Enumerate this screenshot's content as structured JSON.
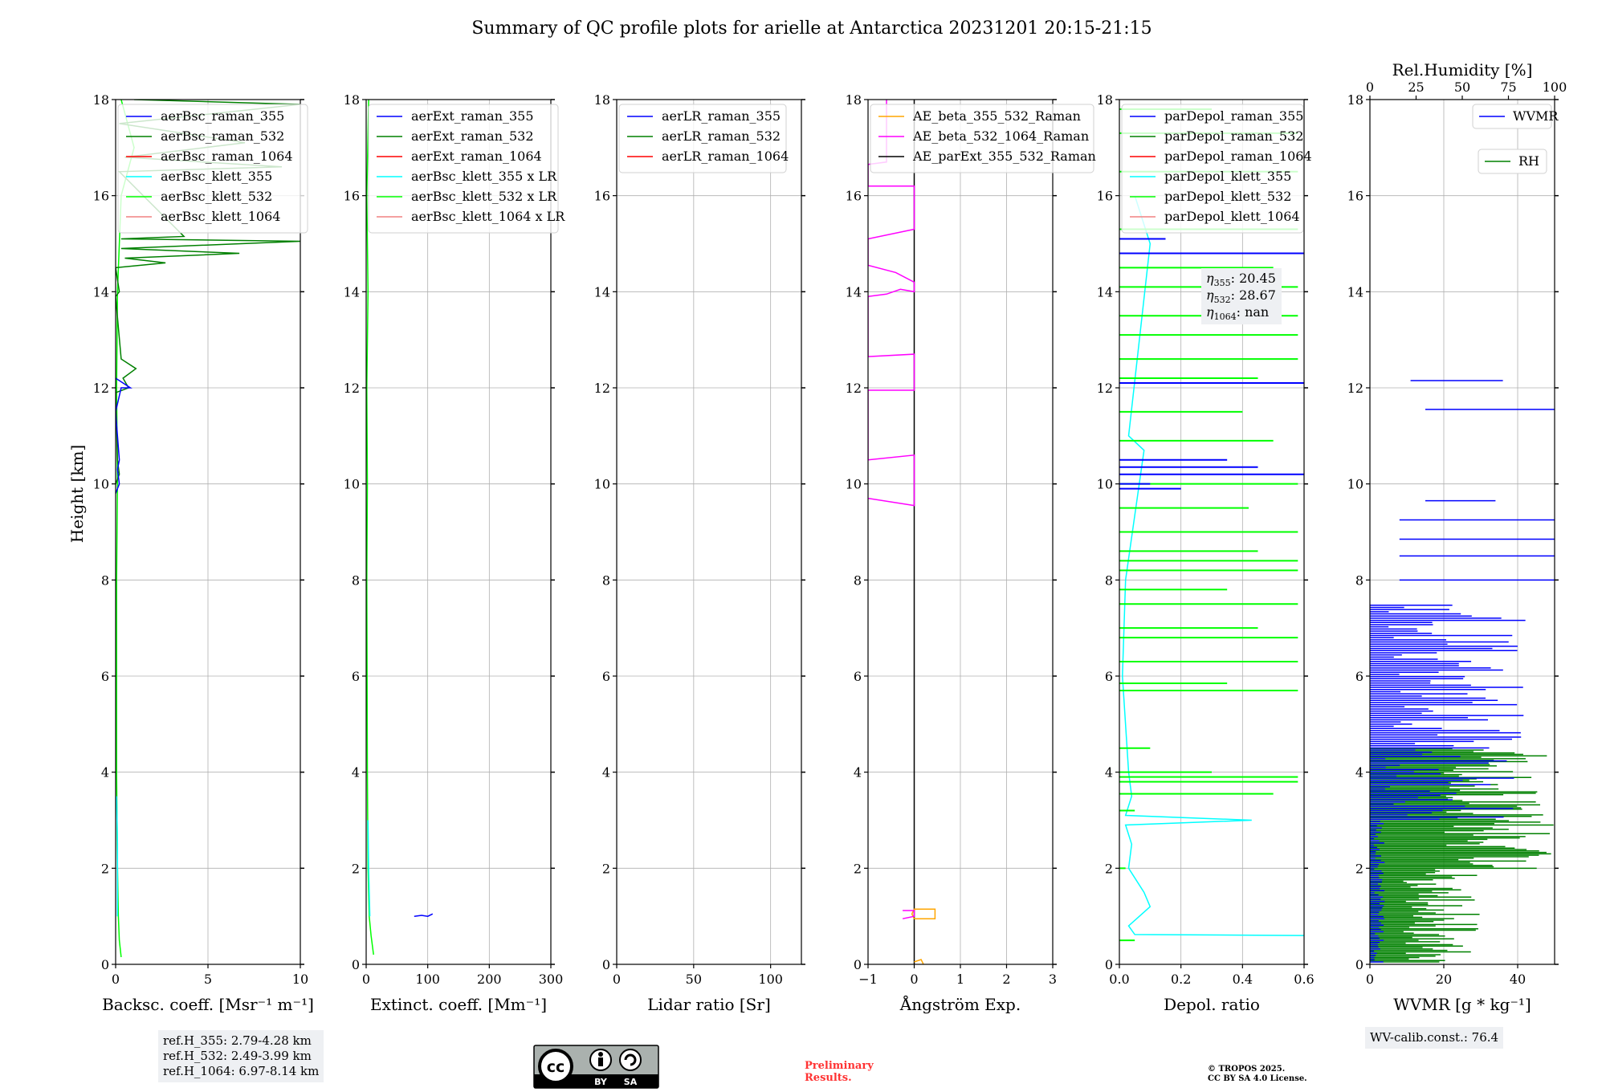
{
  "title": "Summary of QC profile plots for arielle at Antarctica 20231201 20:15-21:15",
  "ylabel": "Height [km]",
  "colors": {
    "blue": "#0000ff",
    "green": "#008000",
    "red": "#ff0000",
    "cyan": "#00ffff",
    "lime": "#00ff00",
    "salmon": "#f08080",
    "orange": "#ffa500",
    "magenta": "#ff00ff",
    "black": "#000000"
  },
  "chart_data": [
    {
      "type": "line",
      "xlabel": "Backsc. coeff. [Msr⁻¹ m⁻¹]",
      "xlim": [
        0,
        10
      ],
      "xticks": [
        0,
        5,
        10
      ],
      "ylim": [
        0,
        18
      ],
      "yticks": [
        0,
        2,
        4,
        6,
        8,
        10,
        12,
        14,
        16,
        18
      ],
      "legend": [
        "aerBsc_raman_355",
        "aerBsc_raman_532",
        "aerBsc_raman_1064",
        "aerBsc_klett_355",
        "aerBsc_klett_532",
        "aerBsc_klett_1064"
      ],
      "legend_colors": [
        "blue",
        "green",
        "red",
        "cyan",
        "lime",
        "salmon"
      ],
      "series": [
        {
          "name": "aerBsc_klett_532",
          "color": "lime",
          "points": [
            [
              0.3,
              0.15
            ],
            [
              0.2,
              0.5
            ],
            [
              0.15,
              1.0
            ],
            [
              0.1,
              2.0
            ],
            [
              0.05,
              4.0
            ],
            [
              0.05,
              8.0
            ],
            [
              0.1,
              10.0
            ],
            [
              0.05,
              12.0
            ],
            [
              0.1,
              14.0
            ],
            [
              0.3,
              16.0
            ],
            [
              1.0,
              17.0
            ],
            [
              0.3,
              18.0
            ]
          ]
        },
        {
          "name": "aerBsc_klett_355",
          "color": "cyan",
          "points": [
            [
              0.1,
              1.0
            ],
            [
              0.1,
              2.5
            ],
            [
              0.05,
              3.5
            ]
          ]
        },
        {
          "name": "aerBsc_raman_532",
          "color": "green",
          "points": [
            [
              0,
              10.0
            ],
            [
              0.2,
              10.2
            ],
            [
              0.1,
              10.5
            ],
            [
              0,
              11.9
            ],
            [
              0.7,
              12.0
            ],
            [
              0.4,
              12.2
            ],
            [
              1.1,
              12.4
            ],
            [
              0.3,
              12.6
            ],
            [
              0,
              13.9
            ],
            [
              0.2,
              14.0
            ],
            [
              0,
              14.5
            ],
            [
              2.7,
              14.6
            ],
            [
              0.5,
              14.7
            ],
            [
              6.7,
              14.8
            ],
            [
              0.3,
              14.9
            ],
            [
              10.0,
              15.05
            ],
            [
              0.3,
              15.1
            ],
            [
              3.7,
              15.15
            ],
            [
              0.2,
              16.5
            ],
            [
              9.0,
              16.6
            ],
            [
              0.5,
              16.8
            ],
            [
              7.0,
              17.1
            ],
            [
              0.2,
              17.5
            ],
            [
              10.0,
              17.9
            ],
            [
              1.0,
              18.0
            ]
          ]
        },
        {
          "name": "aerBsc_raman_355",
          "color": "blue",
          "points": [
            [
              0,
              9.8
            ],
            [
              0.2,
              10.0
            ],
            [
              0.1,
              10.3
            ],
            [
              0.2,
              10.5
            ],
            [
              0,
              11.5
            ],
            [
              0.3,
              12.0
            ],
            [
              0.8,
              12.0
            ],
            [
              0,
              12.2
            ]
          ]
        }
      ]
    },
    {
      "type": "line",
      "xlabel": "Extinct. coeff. [Mm⁻¹]",
      "xlim": [
        0,
        300
      ],
      "xticks": [
        0,
        100,
        200,
        300
      ],
      "ylim": [
        0,
        18
      ],
      "yticks": [
        0,
        2,
        4,
        6,
        8,
        10,
        12,
        14,
        16,
        18
      ],
      "legend": [
        "aerExt_raman_355",
        "aerExt_raman_532",
        "aerExt_raman_1064",
        "aerBsc_klett_355 x LR",
        "aerBsc_klett_532 x LR",
        "aerBsc_klett_1064 x LR"
      ],
      "legend_colors": [
        "blue",
        "green",
        "red",
        "cyan",
        "lime",
        "salmon"
      ],
      "series": [
        {
          "name": "aerBsc_klett_532 x LR",
          "color": "lime",
          "points": [
            [
              12,
              0.2
            ],
            [
              8,
              0.6
            ],
            [
              5,
              1.0
            ],
            [
              3,
              2.0
            ],
            [
              2,
              4.0
            ],
            [
              1,
              8.0
            ],
            [
              2,
              10.0
            ],
            [
              1,
              12.0
            ],
            [
              3,
              14.0
            ],
            [
              1,
              16.0
            ],
            [
              4,
              18.0
            ]
          ]
        },
        {
          "name": "aerBsc_klett_355 x LR",
          "color": "cyan",
          "points": [
            [
              6,
              1.0
            ],
            [
              4,
              2.0
            ],
            [
              3,
              3.0
            ]
          ]
        },
        {
          "name": "aerExt_raman_355",
          "color": "blue",
          "points": [
            [
              78,
              1.0
            ],
            [
              90,
              1.02
            ],
            [
              100,
              1.0
            ],
            [
              108,
              1.05
            ]
          ]
        }
      ]
    },
    {
      "type": "line",
      "xlabel": "Lidar ratio [Sr]",
      "xlim": [
        0,
        120
      ],
      "xticks": [
        0,
        50,
        100
      ],
      "ylim": [
        0,
        18
      ],
      "yticks": [
        0,
        2,
        4,
        6,
        8,
        10,
        12,
        14,
        16,
        18
      ],
      "legend": [
        "aerLR_raman_355",
        "aerLR_raman_532",
        "aerLR_raman_1064"
      ],
      "legend_colors": [
        "blue",
        "green",
        "red"
      ],
      "series": []
    },
    {
      "type": "line",
      "xlabel": "Ångström Exp.",
      "xlim": [
        -1,
        3
      ],
      "xticks": [
        -1,
        0,
        1,
        2,
        3
      ],
      "xticklabels": [
        "−1",
        "0",
        "1",
        "2",
        "3"
      ],
      "ylim": [
        0,
        18
      ],
      "yticks": [
        0,
        2,
        4,
        6,
        8,
        10,
        12,
        14,
        16,
        18
      ],
      "legend": [
        "AE_beta_355_532_Raman",
        "AE_beta_532_1064_Raman",
        "AE_parExt_355_532_Raman"
      ],
      "legend_colors": [
        "orange",
        "magenta",
        "black"
      ],
      "series": [
        {
          "name": "AE_parExt_355_532_Raman",
          "color": "black",
          "points": [
            [
              0,
              0
            ],
            [
              0,
              18
            ]
          ]
        },
        {
          "name": "AE_beta_355_532_Raman",
          "color": "orange",
          "points": [
            [
              0,
              0.95
            ],
            [
              0.45,
              0.95
            ],
            [
              0.45,
              1.15
            ],
            [
              0,
              1.15
            ],
            [
              -0.05,
              1.05
            ],
            [
              0,
              0.95
            ]
          ]
        },
        {
          "name": "AE_beta_355_532_Raman (low)",
          "color": "orange",
          "points": [
            [
              0,
              0.05
            ],
            [
              0.15,
              0.1
            ],
            [
              0.2,
              0.0
            ]
          ]
        },
        {
          "name": "AE_beta_532_1064_Raman",
          "color": "magenta",
          "points": [
            [
              -0.25,
              0.95
            ],
            [
              0,
              1.0
            ],
            [
              0,
              1.12
            ],
            [
              -0.25,
              1.12
            ]
          ]
        },
        {
          "name": "AE_beta_532_1064_Raman (upper)",
          "color": "magenta",
          "points": [
            [
              -1,
              9.7
            ],
            [
              0,
              9.55
            ],
            [
              0,
              10.6
            ],
            [
              -1,
              10.5
            ],
            [
              -1,
              11.95
            ],
            [
              0,
              11.95
            ],
            [
              0,
              12.7
            ],
            [
              -1,
              12.65
            ],
            [
              -1,
              13.9
            ],
            [
              -0.6,
              13.95
            ],
            [
              -0.3,
              14.05
            ],
            [
              0,
              14.0
            ],
            [
              0,
              14.2
            ],
            [
              -0.4,
              14.4
            ],
            [
              -1,
              14.55
            ],
            [
              -1,
              15.1
            ],
            [
              0,
              15.3
            ],
            [
              0,
              16.2
            ],
            [
              -1,
              16.2
            ],
            [
              -1,
              16.65
            ],
            [
              -0.6,
              16.7
            ],
            [
              -0.6,
              18.0
            ]
          ]
        }
      ]
    },
    {
      "type": "line",
      "xlabel": "Depol. ratio",
      "xlim": [
        0,
        0.6
      ],
      "xticks": [
        0,
        0.2,
        0.4,
        0.6
      ],
      "xticklabels": [
        "0.0",
        "0.2",
        "0.4",
        "0.6"
      ],
      "ylim": [
        0,
        18
      ],
      "yticks": [
        0,
        2,
        4,
        6,
        8,
        10,
        12,
        14,
        16,
        18
      ],
      "legend": [
        "parDepol_raman_355",
        "parDepol_raman_532",
        "parDepol_raman_1064",
        "parDepol_klett_355",
        "parDepol_klett_532",
        "parDepol_klett_1064"
      ],
      "legend_colors": [
        "blue",
        "green",
        "red",
        "cyan",
        "lime",
        "salmon"
      ],
      "eta": {
        "eta_355": "20.45",
        "eta_532": "28.67",
        "eta_1064": "nan"
      },
      "series": [
        {
          "name": "parDepol_klett_355",
          "color": "cyan",
          "points": [
            [
              0.6,
              0.6
            ],
            [
              0.05,
              0.62
            ],
            [
              0.03,
              0.8
            ],
            [
              0.1,
              1.2
            ],
            [
              0.08,
              1.5
            ],
            [
              0.03,
              2.0
            ],
            [
              0.04,
              2.5
            ],
            [
              0.02,
              2.9
            ],
            [
              0.43,
              3.0
            ],
            [
              0.02,
              3.1
            ],
            [
              0.04,
              3.5
            ],
            [
              0.03,
              4.0
            ],
            [
              0.01,
              6.0
            ],
            [
              0.02,
              8.0
            ],
            [
              0.08,
              10.7
            ],
            [
              0.03,
              11.0
            ],
            [
              0.1,
              15.0
            ],
            [
              0.05,
              16.0
            ]
          ]
        },
        {
          "name": "parDepol_klett_532",
          "color": "lime",
          "spikes": [
            [
              0.05,
              0.5
            ],
            [
              0.02,
              2.0
            ],
            [
              0.05,
              3.2
            ],
            [
              0.5,
              3.55
            ],
            [
              0.58,
              3.8
            ],
            [
              0.58,
              3.9
            ],
            [
              0.3,
              4.0
            ],
            [
              0.1,
              4.5
            ],
            [
              0.58,
              5.7
            ],
            [
              0.35,
              5.85
            ],
            [
              0.58,
              6.3
            ],
            [
              0.58,
              6.8
            ],
            [
              0.45,
              7.0
            ],
            [
              0.58,
              7.5
            ],
            [
              0.35,
              7.8
            ],
            [
              0.58,
              8.2
            ],
            [
              0.58,
              8.4
            ],
            [
              0.45,
              8.6
            ],
            [
              0.58,
              9.0
            ],
            [
              0.42,
              9.5
            ],
            [
              0.58,
              10.0
            ],
            [
              0.5,
              10.9
            ],
            [
              0.4,
              11.5
            ],
            [
              0.58,
              12.6
            ],
            [
              0.45,
              12.2
            ],
            [
              0.58,
              13.1
            ],
            [
              0.58,
              13.5
            ],
            [
              0.58,
              14.1
            ],
            [
              0.5,
              14.5
            ],
            [
              0.58,
              15.3
            ],
            [
              0.58,
              16.5
            ],
            [
              0.58,
              17.3
            ],
            [
              0.3,
              17.8
            ]
          ]
        },
        {
          "name": "parDepol_raman_355",
          "color": "blue",
          "spikes": [
            [
              0.6,
              14.8
            ],
            [
              0.6,
              12.1
            ],
            [
              0.6,
              10.2
            ],
            [
              0.45,
              10.35
            ],
            [
              0.35,
              10.5
            ],
            [
              0.15,
              15.1
            ],
            [
              0.2,
              9.9
            ],
            [
              0.1,
              10.0
            ]
          ]
        }
      ]
    },
    {
      "type": "line",
      "xlabel": "WVMR [g * kg⁻¹]",
      "xlim": [
        0,
        50
      ],
      "xticks": [
        0,
        20,
        40
      ],
      "x2label": "Rel.Humidity [%]",
      "x2lim": [
        0,
        100
      ],
      "x2ticks": [
        0,
        25,
        50,
        75,
        100
      ],
      "ylim": [
        0,
        18
      ],
      "yticks": [
        0,
        2,
        4,
        6,
        8,
        10,
        12,
        14,
        16,
        18
      ],
      "legend": [
        "WVMR",
        "RH"
      ],
      "legend_colors": [
        "blue",
        "green"
      ],
      "wv_calib": "WV-calib.const.: 76.4",
      "series": []
    }
  ],
  "ref_heights": {
    "line1": "ref.H_355: 2.79-4.28 km",
    "line2": "ref.H_532: 2.49-3.99 km",
    "line3": "ref.H_1064: 6.97-8.14 km"
  },
  "footer": {
    "preliminary_line1": "Preliminary",
    "preliminary_line2": "Results.",
    "copyright_line1": "© TROPOS 2025.",
    "copyright_line2": "CC BY SA 4.0 License.",
    "cc_label": "cc",
    "cc_by": "BY",
    "cc_sa": "SA"
  }
}
